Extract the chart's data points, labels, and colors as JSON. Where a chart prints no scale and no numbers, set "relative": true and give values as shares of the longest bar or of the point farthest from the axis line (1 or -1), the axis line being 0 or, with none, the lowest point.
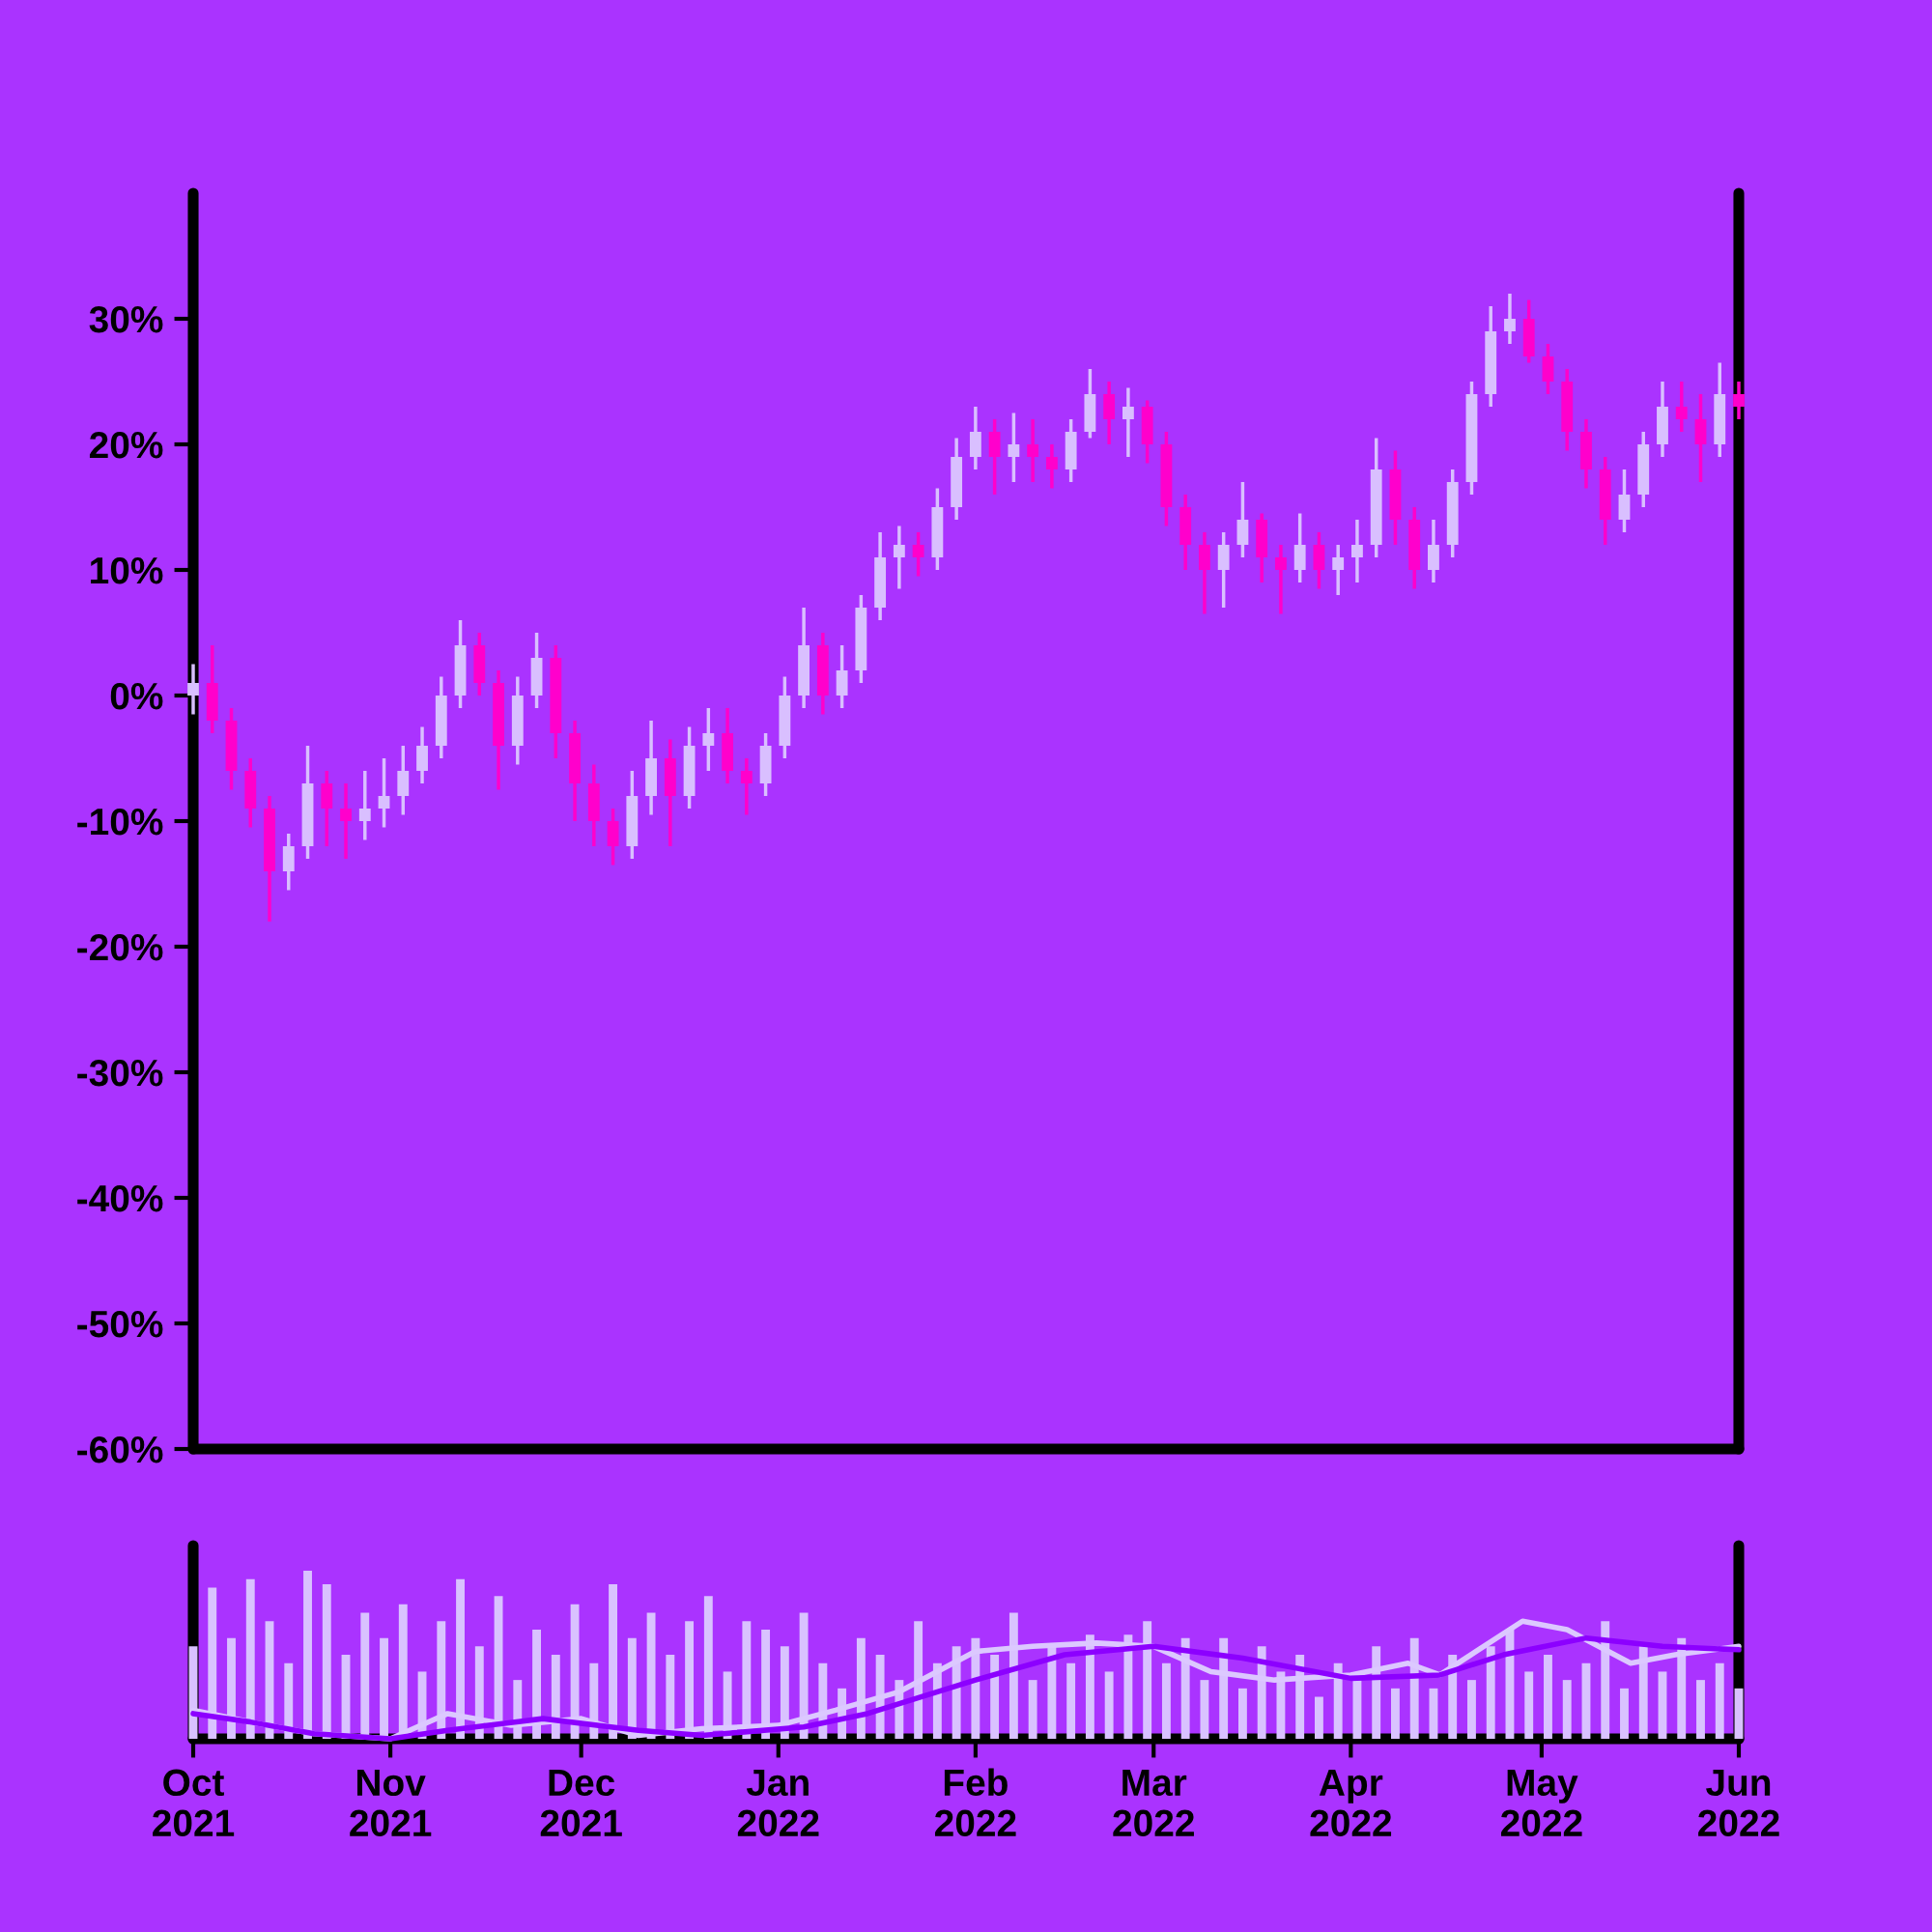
{
  "chart_data": [
    {
      "type": "candlestick",
      "x": [
        "2021-10-01",
        "2021-10-04",
        "2021-10-07",
        "2021-10-10",
        "2021-10-13",
        "2021-10-16",
        "2021-10-19",
        "2021-10-22",
        "2021-10-25",
        "2021-10-28",
        "2021-10-31",
        "2021-11-03",
        "2021-11-06",
        "2021-11-09",
        "2021-11-12",
        "2021-11-15",
        "2021-11-18",
        "2021-11-21",
        "2021-11-24",
        "2021-11-27",
        "2021-11-30",
        "2021-12-03",
        "2021-12-06",
        "2021-12-09",
        "2021-12-12",
        "2021-12-15",
        "2021-12-18",
        "2021-12-21",
        "2021-12-24",
        "2021-12-27",
        "2021-12-30",
        "2022-01-02",
        "2022-01-05",
        "2022-01-08",
        "2022-01-11",
        "2022-01-14",
        "2022-01-17",
        "2022-01-20",
        "2022-01-23",
        "2022-01-26",
        "2022-01-29",
        "2022-02-01",
        "2022-02-04",
        "2022-02-07",
        "2022-02-10",
        "2022-02-13",
        "2022-02-16",
        "2022-02-19",
        "2022-02-22",
        "2022-02-25",
        "2022-02-28",
        "2022-03-03",
        "2022-03-06",
        "2022-03-09",
        "2022-03-12",
        "2022-03-15",
        "2022-03-18",
        "2022-03-21",
        "2022-03-24",
        "2022-03-27",
        "2022-03-30",
        "2022-04-02",
        "2022-04-05",
        "2022-04-08",
        "2022-04-11",
        "2022-04-14",
        "2022-04-17",
        "2022-04-20",
        "2022-04-23",
        "2022-04-26",
        "2022-04-29",
        "2022-05-02",
        "2022-05-05",
        "2022-05-08",
        "2022-05-11",
        "2022-05-14",
        "2022-05-17",
        "2022-05-20",
        "2022-05-23",
        "2022-05-26",
        "2022-05-29",
        "2022-06-01"
      ],
      "ohlc": [
        [
          0,
          2.5,
          -1.5,
          1
        ],
        [
          1,
          4,
          -3,
          -2
        ],
        [
          -2,
          -1,
          -7.5,
          -6
        ],
        [
          -6,
          -5,
          -10.5,
          -9
        ],
        [
          -9,
          -8,
          -18,
          -14
        ],
        [
          -14,
          -11,
          -15.5,
          -12
        ],
        [
          -12,
          -4,
          -13,
          -7
        ],
        [
          -7,
          -6,
          -12,
          -9
        ],
        [
          -9,
          -7,
          -13,
          -10
        ],
        [
          -10,
          -6,
          -11.5,
          -9
        ],
        [
          -9,
          -5,
          -10.5,
          -8
        ],
        [
          -8,
          -4,
          -9.5,
          -6
        ],
        [
          -6,
          -2.5,
          -7,
          -4
        ],
        [
          -4,
          1.5,
          -5,
          0
        ],
        [
          0,
          6,
          -1,
          4
        ],
        [
          4,
          5,
          0,
          1
        ],
        [
          1,
          2,
          -7.5,
          -4
        ],
        [
          -4,
          1.5,
          -5.5,
          0
        ],
        [
          0,
          5,
          -1,
          3
        ],
        [
          3,
          4,
          -5,
          -3
        ],
        [
          -3,
          -2,
          -10,
          -7
        ],
        [
          -7,
          -5.5,
          -12,
          -10
        ],
        [
          -10,
          -9,
          -13.5,
          -12
        ],
        [
          -12,
          -6,
          -13,
          -8
        ],
        [
          -8,
          -2,
          -9.5,
          -5
        ],
        [
          -5,
          -3.5,
          -12,
          -8
        ],
        [
          -8,
          -2.5,
          -9,
          -4
        ],
        [
          -4,
          -1,
          -6,
          -3
        ],
        [
          -3,
          -1,
          -7,
          -6
        ],
        [
          -6,
          -5,
          -9.5,
          -7
        ],
        [
          -7,
          -3,
          -8,
          -4
        ],
        [
          -4,
          1.5,
          -5,
          0
        ],
        [
          0,
          7,
          -1,
          4
        ],
        [
          4,
          5,
          -1.5,
          0
        ],
        [
          0,
          4,
          -1,
          2
        ],
        [
          2,
          8,
          1,
          7
        ],
        [
          7,
          13,
          6,
          11
        ],
        [
          11,
          13.5,
          8.5,
          12
        ],
        [
          12,
          13,
          9.5,
          11
        ],
        [
          11,
          16.5,
          10,
          15
        ],
        [
          15,
          20.5,
          14,
          19
        ],
        [
          19,
          23,
          18,
          21
        ],
        [
          21,
          22,
          16,
          19
        ],
        [
          19,
          22.5,
          17,
          20
        ],
        [
          20,
          22,
          17,
          19
        ],
        [
          19,
          20,
          16.5,
          18
        ],
        [
          18,
          22,
          17,
          21
        ],
        [
          21,
          26,
          20.5,
          24
        ],
        [
          24,
          25,
          20,
          22
        ],
        [
          22,
          24.5,
          19,
          23
        ],
        [
          23,
          23.5,
          18.5,
          20
        ],
        [
          20,
          21,
          13.5,
          15
        ],
        [
          15,
          16,
          10,
          12
        ],
        [
          12,
          13,
          6.5,
          10
        ],
        [
          10,
          13,
          7,
          12
        ],
        [
          12,
          17,
          11,
          14
        ],
        [
          14,
          14.5,
          9,
          11
        ],
        [
          11,
          12,
          6.5,
          10
        ],
        [
          10,
          14.5,
          9,
          12
        ],
        [
          12,
          13,
          8.5,
          10
        ],
        [
          10,
          12,
          8,
          11
        ],
        [
          11,
          14,
          9,
          12
        ],
        [
          12,
          20.5,
          11,
          18
        ],
        [
          18,
          19.5,
          12,
          14
        ],
        [
          14,
          15,
          8.5,
          10
        ],
        [
          10,
          14,
          9,
          12
        ],
        [
          12,
          18,
          11,
          17
        ],
        [
          17,
          25,
          16,
          24
        ],
        [
          24,
          31,
          23,
          29
        ],
        [
          29,
          32,
          28,
          30
        ],
        [
          30,
          31.5,
          26.5,
          27
        ],
        [
          27,
          28,
          24,
          25
        ],
        [
          25,
          26,
          19.5,
          21
        ],
        [
          21,
          22,
          16.5,
          18
        ],
        [
          18,
          19,
          12,
          14
        ],
        [
          14,
          18,
          13,
          16
        ],
        [
          16,
          21,
          15,
          20
        ],
        [
          20,
          25,
          19,
          23
        ],
        [
          23,
          25,
          21,
          22
        ],
        [
          22,
          24,
          17,
          20
        ],
        [
          20,
          26.5,
          19,
          24
        ],
        [
          24,
          25,
          22,
          23
        ]
      ],
      "colors": [
        "#d9bfff",
        "#ff00cc",
        "#ff00cc",
        "#ff00cc",
        "#ff00cc",
        "#d9bfff",
        "#d9bfff",
        "#ff00cc",
        "#ff00cc",
        "#d9bfff",
        "#d9bfff",
        "#d9bfff",
        "#d9bfff",
        "#d9bfff",
        "#d9bfff",
        "#ff00cc",
        "#ff00cc",
        "#d9bfff",
        "#d9bfff",
        "#ff00cc",
        "#ff00cc",
        "#ff00cc",
        "#ff00cc",
        "#d9bfff",
        "#d9bfff",
        "#ff00cc",
        "#d9bfff",
        "#d9bfff",
        "#ff00cc",
        "#ff00cc",
        "#d9bfff",
        "#d9bfff",
        "#d9bfff",
        "#ff00cc",
        "#d9bfff",
        "#d9bfff",
        "#d9bfff",
        "#d9bfff",
        "#ff00cc",
        "#d9bfff",
        "#d9bfff",
        "#d9bfff",
        "#ff00cc",
        "#d9bfff",
        "#ff00cc",
        "#ff00cc",
        "#d9bfff",
        "#d9bfff",
        "#ff00cc",
        "#d9bfff",
        "#ff00cc",
        "#ff00cc",
        "#ff00cc",
        "#ff00cc",
        "#d9bfff",
        "#d9bfff",
        "#ff00cc",
        "#ff00cc",
        "#d9bfff",
        "#ff00cc",
        "#d9bfff",
        "#d9bfff",
        "#d9bfff",
        "#ff00cc",
        "#ff00cc",
        "#d9bfff",
        "#d9bfff",
        "#d9bfff",
        "#d9bfff",
        "#d9bfff",
        "#ff00cc",
        "#ff00cc",
        "#ff00cc",
        "#ff00cc",
        "#ff00cc",
        "#d9bfff",
        "#d9bfff",
        "#d9bfff",
        "#ff00cc",
        "#ff00cc",
        "#d9bfff",
        "#ff00cc"
      ],
      "xlim": [
        "2021-10-01",
        "2022-06-01"
      ],
      "ylim": [
        -60,
        40
      ],
      "yticks": [
        {
          "value": 30,
          "label": "30%"
        },
        {
          "value": 20,
          "label": "20%"
        },
        {
          "value": 10,
          "label": "10%"
        },
        {
          "value": 0,
          "label": "0%"
        },
        {
          "value": -10,
          "label": "-10%"
        },
        {
          "value": -20,
          "label": "-20%"
        },
        {
          "value": -30,
          "label": "-30%"
        },
        {
          "value": -40,
          "label": "-40%"
        },
        {
          "value": -50,
          "label": "-50%"
        },
        {
          "value": -60,
          "label": "-60%"
        }
      ],
      "tick_labels": "y"
    },
    {
      "type": "bar",
      "relative": true,
      "x": [
        "2021-10-01",
        "2021-10-04",
        "2021-10-07",
        "2021-10-10",
        "2021-10-13",
        "2021-10-16",
        "2021-10-19",
        "2021-10-22",
        "2021-10-25",
        "2021-10-28",
        "2021-10-31",
        "2021-11-03",
        "2021-11-06",
        "2021-11-09",
        "2021-11-12",
        "2021-11-15",
        "2021-11-18",
        "2021-11-21",
        "2021-11-24",
        "2021-11-27",
        "2021-11-30",
        "2021-12-03",
        "2021-12-06",
        "2021-12-09",
        "2021-12-12",
        "2021-12-15",
        "2021-12-18",
        "2021-12-21",
        "2021-12-24",
        "2021-12-27",
        "2021-12-30",
        "2022-01-02",
        "2022-01-05",
        "2022-01-08",
        "2022-01-11",
        "2022-01-14",
        "2022-01-17",
        "2022-01-20",
        "2022-01-23",
        "2022-01-26",
        "2022-01-29",
        "2022-02-01",
        "2022-02-04",
        "2022-02-07",
        "2022-02-10",
        "2022-02-13",
        "2022-02-16",
        "2022-02-19",
        "2022-02-22",
        "2022-02-25",
        "2022-02-28",
        "2022-03-03",
        "2022-03-06",
        "2022-03-09",
        "2022-03-12",
        "2022-03-15",
        "2022-03-18",
        "2022-03-21",
        "2022-03-24",
        "2022-03-27",
        "2022-03-30",
        "2022-04-02",
        "2022-04-05",
        "2022-04-08",
        "2022-04-11",
        "2022-04-14",
        "2022-04-17",
        "2022-04-20",
        "2022-04-23",
        "2022-04-26",
        "2022-04-29",
        "2022-05-02",
        "2022-05-05",
        "2022-05-08",
        "2022-05-11",
        "2022-05-14",
        "2022-05-17",
        "2022-05-20",
        "2022-05-23",
        "2022-05-26",
        "2022-05-29",
        "2022-06-01"
      ],
      "series": [
        {
          "color": "#d9c2ff",
          "values": [
            0.55,
            0.9,
            0.6,
            0.95,
            0.7,
            0.45,
            1,
            0.92,
            0.5,
            0.75,
            0.6,
            0.8,
            0.4,
            0.7,
            0.95,
            0.55,
            0.85,
            0.35,
            0.65,
            0.5,
            0.8,
            0.45,
            0.92,
            0.6,
            0.75,
            0.5,
            0.7,
            0.85,
            0.4,
            0.7,
            0.65,
            0.55,
            0.75,
            0.45,
            0.3,
            0.6,
            0.5,
            0.35,
            0.7,
            0.45,
            0.55,
            0.6,
            0.5,
            0.75,
            0.35,
            0.55,
            0.45,
            0.62,
            0.4,
            0.62,
            0.7,
            0.45,
            0.6,
            0.35,
            0.6,
            0.3,
            0.55,
            0.4,
            0.5,
            0.25,
            0.45,
            0.35,
            0.55,
            0.3,
            0.6,
            0.3,
            0.5,
            0.35,
            0.55,
            0.65,
            0.4,
            0.5,
            0.35,
            0.45,
            0.7,
            0.3,
            0.55,
            0.4,
            0.6,
            0.35,
            0.45,
            0.3
          ]
        },
        {
          "type": "line",
          "color": "#dcc8ff",
          "x": [
            "2021-10-01",
            "2021-10-10",
            "2021-10-20",
            "2021-11-01",
            "2021-11-10",
            "2021-11-20",
            "2021-12-01",
            "2021-12-10",
            "2021-12-20",
            "2022-01-01",
            "2022-01-10",
            "2022-01-20",
            "2022-02-01",
            "2022-02-10",
            "2022-02-20",
            "2022-03-01",
            "2022-03-10",
            "2022-03-20",
            "2022-04-01",
            "2022-04-10",
            "2022-04-15",
            "2022-04-28",
            "2022-05-05",
            "2022-05-15",
            "2022-05-22",
            "2022-06-01"
          ],
          "values": [
            0.17,
            0.1,
            0.03,
            0.0,
            0.15,
            0.08,
            0.12,
            0.02,
            0.06,
            0.08,
            0.17,
            0.28,
            0.52,
            0.55,
            0.57,
            0.55,
            0.4,
            0.35,
            0.38,
            0.45,
            0.38,
            0.7,
            0.65,
            0.45,
            0.5,
            0.55
          ]
        },
        {
          "type": "line",
          "color": "#8c00ff",
          "x": [
            "2021-10-01",
            "2021-10-10",
            "2021-10-20",
            "2021-11-01",
            "2021-11-10",
            "2021-11-25",
            "2021-12-10",
            "2021-12-20",
            "2022-01-05",
            "2022-01-15",
            "2022-02-01",
            "2022-02-15",
            "2022-03-01",
            "2022-03-15",
            "2022-04-01",
            "2022-04-15",
            "2022-04-25",
            "2022-05-08",
            "2022-05-20",
            "2022-06-01"
          ],
          "values": [
            0.15,
            0.1,
            0.03,
            0.0,
            0.05,
            0.12,
            0.05,
            0.02,
            0.07,
            0.15,
            0.35,
            0.5,
            0.55,
            0.48,
            0.36,
            0.38,
            0.5,
            0.6,
            0.55,
            0.53
          ]
        }
      ],
      "xlim": [
        "2021-10-01",
        "2022-06-01"
      ],
      "xticks": [
        {
          "value": "2021-10-01",
          "label": "Oct\n2021"
        },
        {
          "value": "2021-11-01",
          "label": "Nov\n2021"
        },
        {
          "value": "2021-12-01",
          "label": "Dec\n2021"
        },
        {
          "value": "2022-01-01",
          "label": "Jan\n2022"
        },
        {
          "value": "2022-02-01",
          "label": "Feb\n2022"
        },
        {
          "value": "2022-03-01",
          "label": "Mar\n2022"
        },
        {
          "value": "2022-04-01",
          "label": "Apr\n2022"
        },
        {
          "value": "2022-05-01",
          "label": "May\n2022"
        },
        {
          "value": "2022-06-01",
          "label": "Jun\n2022"
        }
      ],
      "tick_labels": "x"
    }
  ]
}
